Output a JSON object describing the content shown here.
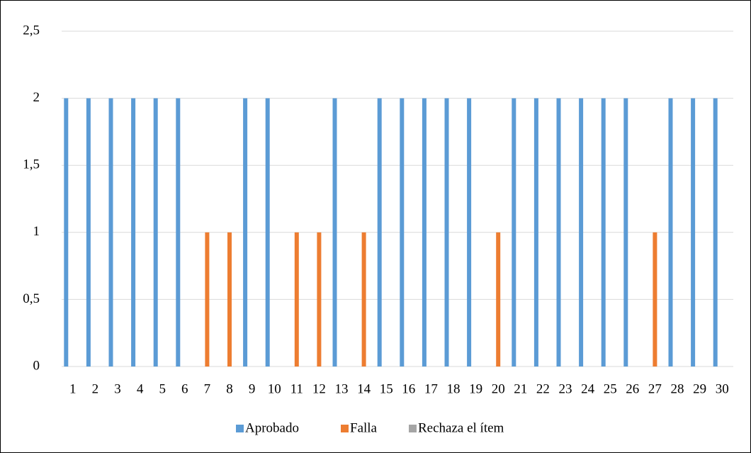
{
  "chart_data": {
    "type": "bar",
    "categories": [
      "1",
      "2",
      "3",
      "4",
      "5",
      "6",
      "7",
      "8",
      "9",
      "10",
      "11",
      "12",
      "13",
      "14",
      "15",
      "16",
      "17",
      "18",
      "19",
      "20",
      "21",
      "22",
      "23",
      "24",
      "25",
      "26",
      "27",
      "28",
      "29",
      "30"
    ],
    "series": [
      {
        "name": "Aprobado",
        "color": "#5b9bd5",
        "values": [
          2,
          2,
          2,
          2,
          2,
          2,
          0,
          0,
          2,
          2,
          0,
          0,
          2,
          0,
          2,
          2,
          2,
          2,
          2,
          0,
          2,
          2,
          2,
          2,
          2,
          2,
          0,
          2,
          2,
          2
        ]
      },
      {
        "name": "Falla",
        "color": "#ed7d31",
        "values": [
          0,
          0,
          0,
          0,
          0,
          0,
          1,
          1,
          0,
          0,
          1,
          1,
          0,
          1,
          0,
          0,
          0,
          0,
          0,
          1,
          0,
          0,
          0,
          0,
          0,
          0,
          1,
          0,
          0,
          0
        ]
      },
      {
        "name": "Rechaza el ítem",
        "color": "#a5a5a5",
        "values": [
          0,
          0,
          0,
          0,
          0,
          0,
          0,
          0,
          0,
          0,
          0,
          0,
          0,
          0,
          0,
          0,
          0,
          0,
          0,
          0,
          0,
          0,
          0,
          0,
          0,
          0,
          0,
          0,
          0,
          0
        ]
      }
    ],
    "ylim": [
      0,
      2.5
    ],
    "yticks": [
      0,
      {
        "value": 0.5,
        "label": "0,5"
      },
      1,
      {
        "value": 1.5,
        "label": "1,5"
      },
      2,
      {
        "value": 2.5,
        "label": "2,5"
      }
    ],
    "grid": true,
    "legend": "bottom"
  }
}
